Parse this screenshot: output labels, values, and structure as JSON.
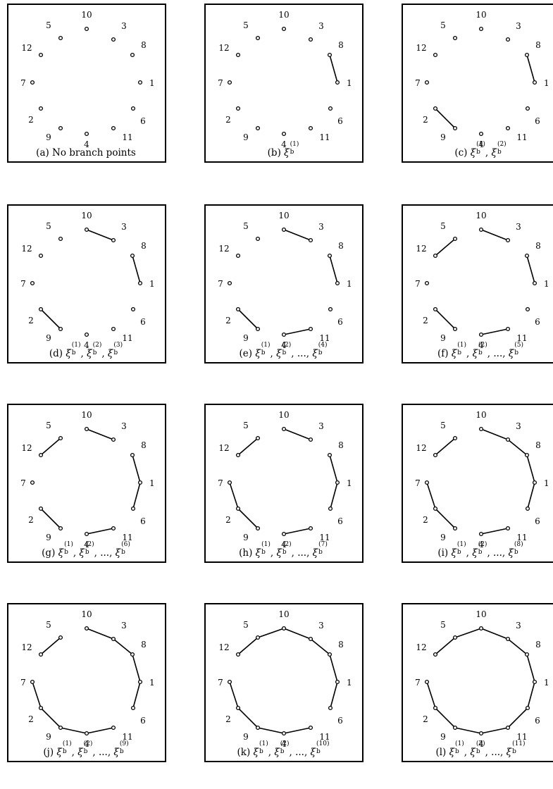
{
  "node_labels": [
    "1",
    "2",
    "3",
    "4",
    "5",
    "6",
    "7",
    "8",
    "9",
    "10",
    "11",
    "12"
  ],
  "panels": [
    {
      "tag": "(a)",
      "caption": "No branch points",
      "edges": []
    },
    {
      "tag": "(b)",
      "caption": "ξ_b^(1)",
      "edges": [
        [
          8,
          1
        ]
      ]
    },
    {
      "tag": "(c)",
      "caption": "ξ_b^(1), ξ_b^(2)",
      "edges": [
        [
          8,
          1
        ],
        [
          2,
          9
        ]
      ]
    },
    {
      "tag": "(d)",
      "caption": "ξ_b^(1), ξ_b^(2), ξ_b^(3)",
      "edges": [
        [
          8,
          1
        ],
        [
          2,
          9
        ],
        [
          10,
          3
        ]
      ]
    },
    {
      "tag": "(e)",
      "caption": "ξ_b^(1), ξ_b^(2), ..., ξ_b^(4)",
      "edges": [
        [
          8,
          1
        ],
        [
          2,
          9
        ],
        [
          10,
          3
        ],
        [
          4,
          11
        ]
      ]
    },
    {
      "tag": "(f)",
      "caption": "ξ_b^(1), ξ_b^(2), ..., ξ_b^(5)",
      "edges": [
        [
          8,
          1
        ],
        [
          2,
          9
        ],
        [
          10,
          3
        ],
        [
          4,
          11
        ],
        [
          12,
          5
        ]
      ]
    },
    {
      "tag": "(g)",
      "caption": "ξ_b^(1), ξ_b^(2), ..., ξ_b^(6)",
      "edges": [
        [
          8,
          1
        ],
        [
          2,
          9
        ],
        [
          10,
          3
        ],
        [
          4,
          11
        ],
        [
          12,
          5
        ],
        [
          1,
          6
        ]
      ]
    },
    {
      "tag": "(h)",
      "caption": "ξ_b^(1), ξ_b^(2), ..., ξ_b^(7)",
      "edges": [
        [
          8,
          1
        ],
        [
          2,
          9
        ],
        [
          10,
          3
        ],
        [
          4,
          11
        ],
        [
          12,
          5
        ],
        [
          1,
          6
        ],
        [
          7,
          2
        ]
      ]
    },
    {
      "tag": "(i)",
      "caption": "ξ_b^(1), ξ_b^(2), ..., ξ_b^(8)",
      "edges": [
        [
          8,
          1
        ],
        [
          2,
          9
        ],
        [
          10,
          3
        ],
        [
          4,
          11
        ],
        [
          12,
          5
        ],
        [
          1,
          6
        ],
        [
          7,
          2
        ],
        [
          3,
          8
        ]
      ]
    },
    {
      "tag": "(j)",
      "caption": "ξ_b^(1), ξ_b^(2), ..., ξ_b^(9)",
      "edges": [
        [
          8,
          1
        ],
        [
          2,
          9
        ],
        [
          10,
          3
        ],
        [
          4,
          11
        ],
        [
          12,
          5
        ],
        [
          1,
          6
        ],
        [
          7,
          2
        ],
        [
          3,
          8
        ],
        [
          9,
          4
        ]
      ]
    },
    {
      "tag": "(k)",
      "caption": "ξ_b^(1), ξ_b^(2), ..., ξ_b^(10)",
      "edges": [
        [
          8,
          1
        ],
        [
          2,
          9
        ],
        [
          10,
          3
        ],
        [
          4,
          11
        ],
        [
          12,
          5
        ],
        [
          1,
          6
        ],
        [
          7,
          2
        ],
        [
          3,
          8
        ],
        [
          9,
          4
        ],
        [
          5,
          10
        ]
      ]
    },
    {
      "tag": "(l)",
      "caption": "ξ_b^(1), ξ_b^(2), ..., ξ_b^(11)",
      "edges": [
        [
          8,
          1
        ],
        [
          2,
          9
        ],
        [
          10,
          3
        ],
        [
          4,
          11
        ],
        [
          12,
          5
        ],
        [
          1,
          6
        ],
        [
          7,
          2
        ],
        [
          3,
          8
        ],
        [
          9,
          4
        ],
        [
          5,
          10
        ],
        [
          6,
          11
        ]
      ]
    }
  ]
}
